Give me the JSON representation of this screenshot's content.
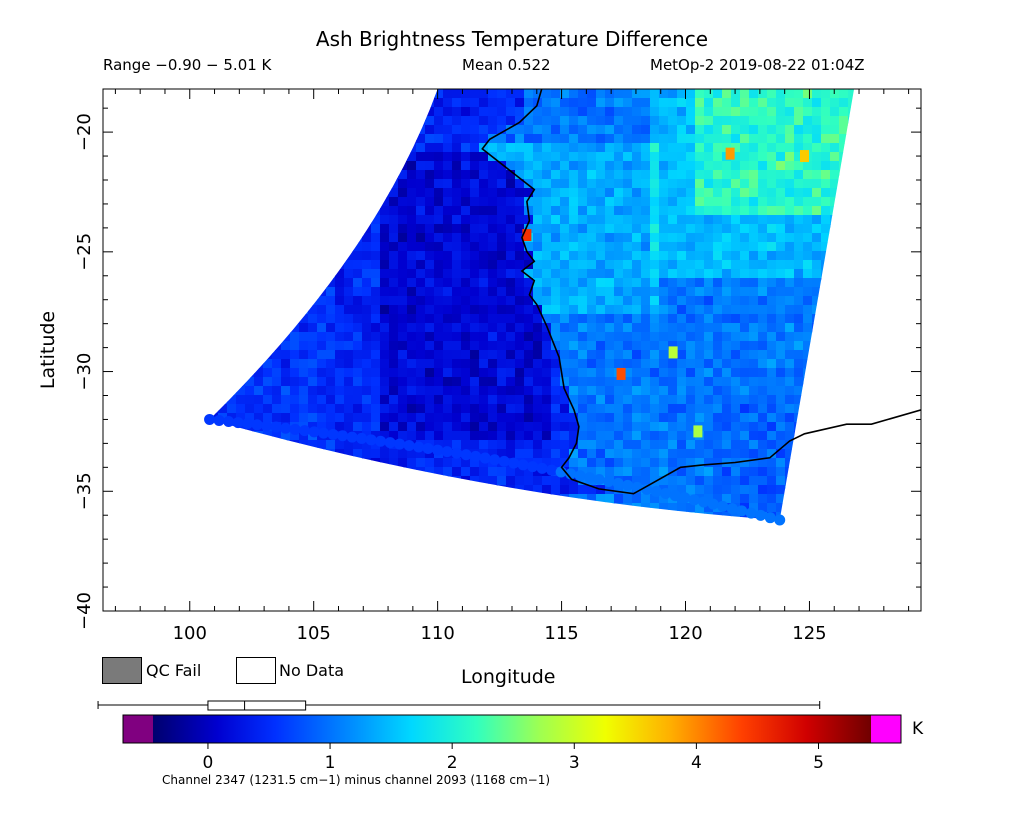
{
  "header": {
    "title": "Ash Brightness Temperature Difference",
    "range": "Range −0.90 − 5.01 K",
    "mean": "Mean 0.522",
    "satellite_time": "MetOp-2 2019-08-22 01:04Z"
  },
  "map": {
    "x_axis_label": "Longitude",
    "y_axis_label": "Latitude",
    "lon_range": [
      96.5,
      129.5
    ],
    "lat_range": [
      -40.0,
      -18.2
    ],
    "lon_ticks": [
      "100",
      "105",
      "110",
      "115",
      "120",
      "125"
    ],
    "lon_tick_values": [
      100,
      105,
      110,
      115,
      120,
      125
    ],
    "lat_ticks": [
      "−20",
      "−25",
      "−30",
      "−35",
      "−40"
    ],
    "lat_tick_values": [
      -20,
      -25,
      -30,
      -35,
      -40
    ],
    "swath_corners": {
      "top_left": [
        110.0,
        -18.2
      ],
      "top_right": [
        126.8,
        -18.2
      ],
      "bottom_right": [
        123.8,
        -36.2
      ],
      "bottom_left": [
        100.8,
        -32.0
      ]
    },
    "coastline": [
      [
        114.2,
        -18.2
      ],
      [
        114.0,
        -18.9
      ],
      [
        113.3,
        -19.6
      ],
      [
        112.1,
        -20.3
      ],
      [
        111.8,
        -20.7
      ],
      [
        113.9,
        -22.4
      ],
      [
        113.6,
        -22.9
      ],
      [
        113.7,
        -23.7
      ],
      [
        113.4,
        -24.4
      ],
      [
        113.6,
        -25.0
      ],
      [
        113.9,
        -25.4
      ],
      [
        113.4,
        -25.8
      ],
      [
        113.9,
        -26.2
      ],
      [
        113.7,
        -26.8
      ],
      [
        114.0,
        -27.2
      ],
      [
        114.4,
        -28.1
      ],
      [
        114.9,
        -29.4
      ],
      [
        115.1,
        -30.7
      ],
      [
        115.5,
        -31.6
      ],
      [
        115.7,
        -32.3
      ],
      [
        115.6,
        -33.0
      ],
      [
        115.3,
        -33.6
      ],
      [
        115.0,
        -34.0
      ],
      [
        115.4,
        -34.5
      ],
      [
        116.5,
        -34.9
      ],
      [
        117.9,
        -35.1
      ],
      [
        118.6,
        -34.7
      ],
      [
        119.8,
        -34.0
      ],
      [
        120.7,
        -33.9
      ],
      [
        122.0,
        -33.8
      ],
      [
        123.4,
        -33.6
      ],
      [
        124.2,
        -32.9
      ],
      [
        124.8,
        -32.6
      ],
      [
        126.5,
        -32.2
      ],
      [
        127.5,
        -32.2
      ],
      [
        129.5,
        -31.6
      ]
    ]
  },
  "legend": {
    "qc_fail_label": "QC Fail",
    "no_data_label": "No Data",
    "qc_fail_color": "#7a7a7a",
    "no_data_color": "#ffffff"
  },
  "colorbar": {
    "unit": "K",
    "min": -0.9,
    "max": 5.01,
    "tick_labels": [
      "0",
      "1",
      "2",
      "3",
      "4",
      "5"
    ],
    "tick_values": [
      0,
      1,
      2,
      3,
      4,
      5
    ],
    "below_range_color": "#800080",
    "above_range_color": "#ff00ff",
    "histogram_box": [
      0.0,
      0.8
    ],
    "histogram_median": 0.3,
    "footnote": "Channel 2347 (1231.5 cm−1) minus channel 2093 (1168 cm−1)"
  },
  "chart_data": {
    "type": "heatmap",
    "title": "Ash Brightness Temperature Difference",
    "xlabel": "Longitude",
    "ylabel": "Latitude",
    "xlim": [
      96.5,
      129.5
    ],
    "ylim": [
      -40.0,
      -18.2
    ],
    "value_range": [
      -0.9,
      5.01
    ],
    "mean": 0.522,
    "units": "K",
    "hotspots": [
      {
        "lon": 113.6,
        "lat": -24.3,
        "value": 4.5
      },
      {
        "lon": 117.4,
        "lat": -30.1,
        "value": 4.3
      },
      {
        "lon": 121.8,
        "lat": -20.9,
        "value": 3.9
      },
      {
        "lon": 124.8,
        "lat": -21.0,
        "value": 3.6
      },
      {
        "lon": 119.5,
        "lat": -29.2,
        "value": 2.9
      },
      {
        "lon": 120.5,
        "lat": -32.5,
        "value": 2.8
      }
    ]
  }
}
